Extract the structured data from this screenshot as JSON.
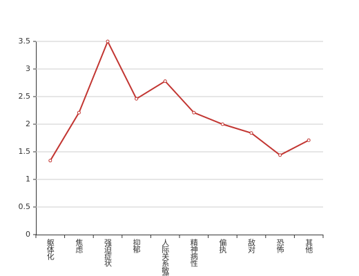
{
  "chart_data": {
    "type": "line",
    "categories": [
      "躯体化",
      "焦虑",
      "强迫症状",
      "抑郁",
      "人际关系敏感",
      "精神病性",
      "偏执",
      "敌对",
      "恐怖",
      "其他"
    ],
    "values": [
      1.34,
      2.21,
      3.5,
      2.46,
      2.78,
      2.21,
      2.0,
      1.84,
      1.44,
      1.71
    ],
    "color": "#c23531",
    "ylim": [
      0,
      3.5
    ],
    "yticks": [
      0,
      0.5,
      1,
      1.5,
      2,
      2.5,
      3,
      3.5
    ],
    "grid": true
  }
}
